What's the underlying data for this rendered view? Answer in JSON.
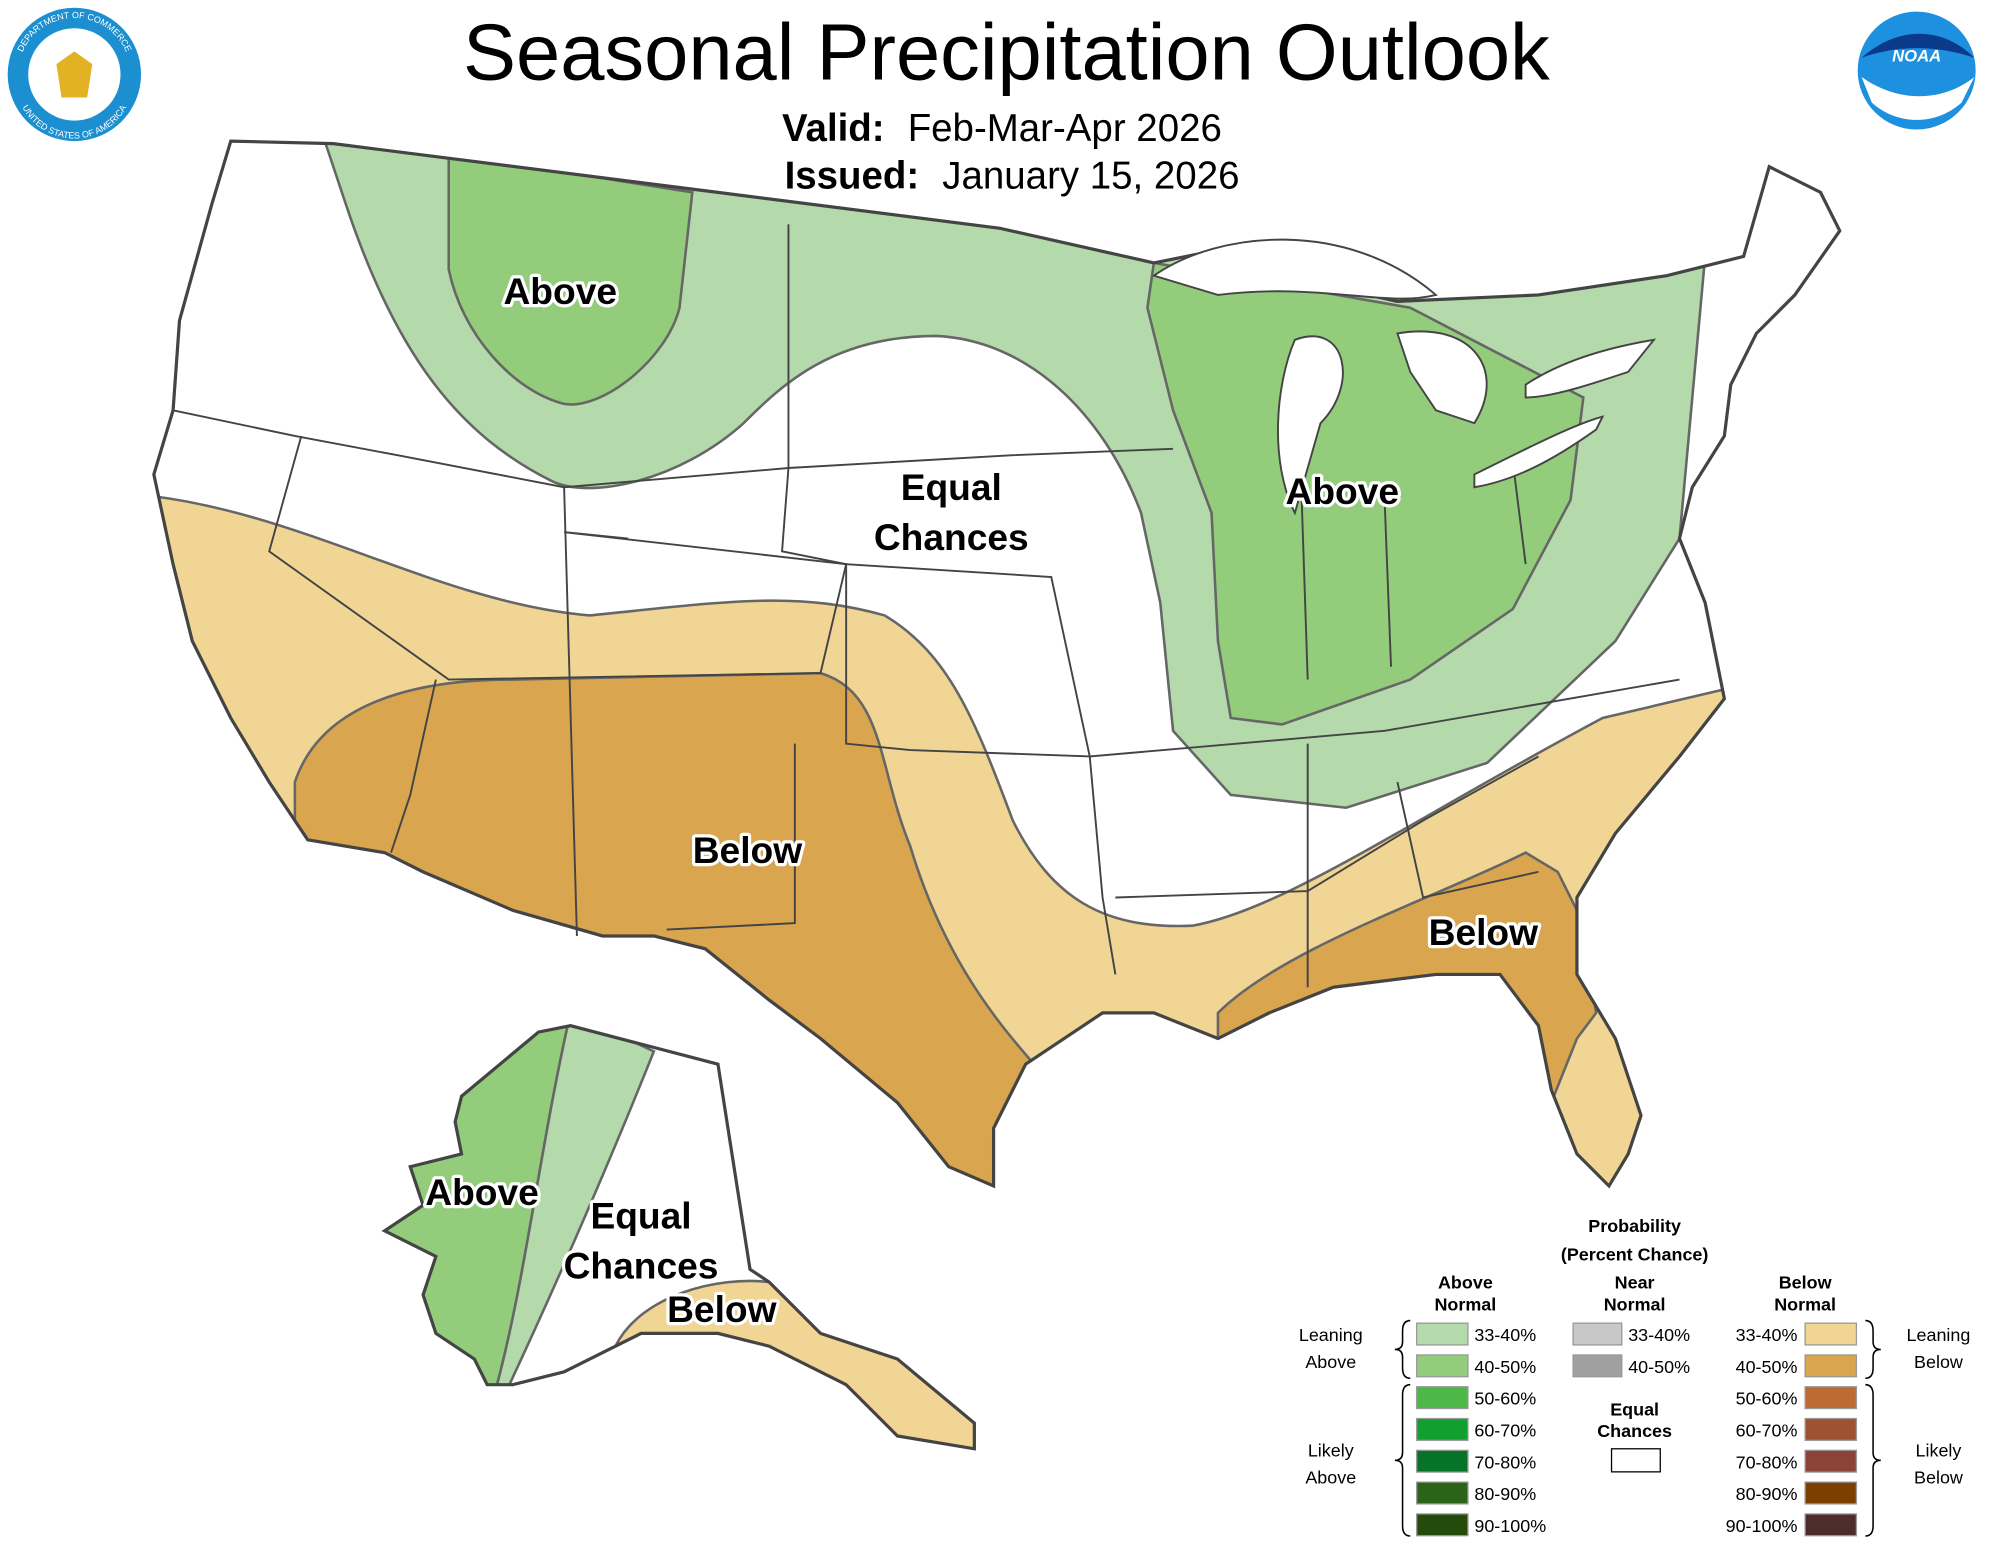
{
  "header": {
    "title": "Seasonal Precipitation Outlook",
    "valid_label": "Valid:",
    "valid": "Feb-Mar-Apr 2026",
    "issued_label": "Issued:",
    "issued": "January 15, 2026"
  },
  "logos": {
    "noaa": "NOAA",
    "doc_seal": [
      "DEPARTMENT OF COMMERCE",
      "UNITED STATES OF AMERICA"
    ]
  },
  "map_labels": [
    {
      "lines": [
        "Above"
      ]
    },
    {
      "lines": [
        "Equal",
        "Chances"
      ]
    },
    {
      "lines": [
        "Above"
      ]
    },
    {
      "lines": [
        "Below"
      ]
    },
    {
      "lines": [
        "Below"
      ]
    },
    {
      "lines": [
        "Above"
      ]
    },
    {
      "lines": [
        "Equal",
        "Chances"
      ]
    },
    {
      "lines": [
        "Below"
      ]
    }
  ],
  "legend": {
    "title": [
      "Probability",
      "(Percent Chance)"
    ],
    "above_header": [
      "Above",
      "Normal"
    ],
    "near_header": [
      "Near",
      "Normal"
    ],
    "below_header": [
      "Below",
      "Normal"
    ],
    "above_rows": [
      {
        "label": "33-40%",
        "color": "#b4d9aa"
      },
      {
        "label": "40-50%",
        "color": "#93cd7b"
      },
      {
        "label": "50-60%",
        "color": "#4db848"
      },
      {
        "label": "60-70%",
        "color": "#11a030"
      },
      {
        "label": "70-80%",
        "color": "#077328"
      },
      {
        "label": "80-90%",
        "color": "#2b6318"
      },
      {
        "label": "90-100%",
        "color": "#244a0c"
      }
    ],
    "near_rows": [
      {
        "label": "33-40%",
        "color": "#c8c8c8"
      },
      {
        "label": "40-50%",
        "color": "#a0a0a0"
      }
    ],
    "below_rows": [
      {
        "label": "33-40%",
        "color": "#f0d594"
      },
      {
        "label": "40-50%",
        "color": "#d9a54f"
      },
      {
        "label": "50-60%",
        "color": "#bd6b30"
      },
      {
        "label": "60-70%",
        "color": "#9e5230"
      },
      {
        "label": "70-80%",
        "color": "#8c4337"
      },
      {
        "label": "80-90%",
        "color": "#7b3f00"
      },
      {
        "label": "90-100%",
        "color": "#4e2c2c"
      }
    ],
    "equal": [
      "Equal",
      "Chances"
    ],
    "equal_color": "#ffffff",
    "leaning_above": [
      "Leaning",
      "Above"
    ],
    "likely_above": [
      "Likely",
      "Above"
    ],
    "leaning_below": [
      "Leaning",
      "Below"
    ],
    "likely_below": [
      "Likely",
      "Below"
    ]
  }
}
